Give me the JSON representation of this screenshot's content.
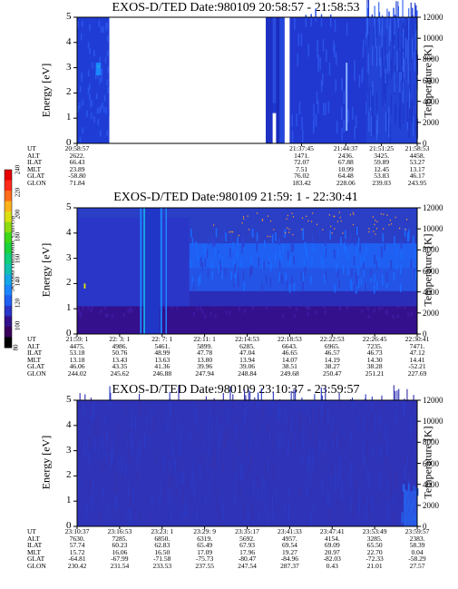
{
  "colorbar": {
    "label": "Second Harmonic Current",
    "ticks": [
      "80",
      "100",
      "120",
      "140",
      "160",
      "180",
      "200",
      "220",
      "240"
    ],
    "colors": [
      "#000000",
      "#3a005a",
      "#34108c",
      "#2a36c8",
      "#1f5ff2",
      "#1b86ff",
      "#16a6e6",
      "#12c0b0",
      "#11cf7a",
      "#1bd23c",
      "#3ed81a",
      "#8ddc11",
      "#dbe012",
      "#ffb31a",
      "#ff6d1c",
      "#ff2a1a",
      "#e60000"
    ]
  },
  "chart_data": [
    {
      "type": "heatmap",
      "title": "EXOS-D/TED   Date:980109  20:58:57 - 21:58:53",
      "ylabel": "Energy [eV]",
      "y2label": "Temperature [K]",
      "yticks": [
        "0",
        "1",
        "2",
        "3",
        "4",
        "5"
      ],
      "y2ticks": [
        "0",
        "2000",
        "4000",
        "6000",
        "8000",
        "10000",
        "12000"
      ],
      "ylim": [
        0,
        5
      ],
      "y2lim": [
        0,
        12000
      ],
      "orbit_rows": [
        "UT",
        "ALT",
        "ILAT",
        "MLT",
        "GLAT",
        "GLON"
      ],
      "orbit_columns": [
        [
          "20:58:57",
          "2622.",
          "66.43",
          "23.89",
          "-58.80",
          "71.84"
        ],
        [
          "21:37:45",
          "1471.",
          "72.07",
          "7.51",
          "76.02",
          "183.42"
        ],
        [
          "21:44:37",
          "2436.",
          "67.88",
          "10.99",
          "64.48",
          "228.06"
        ],
        [
          "21:51:25",
          "3425.",
          "59.89",
          "12.45",
          "53.83",
          "239.03"
        ],
        [
          "21:58:53",
          "4458.",
          "53.27",
          "13.17",
          "46.17",
          "243.95"
        ]
      ]
    },
    {
      "type": "heatmap",
      "title": "EXOS-D/TED   Date:980109  21:59: 1 - 22:30:41",
      "ylabel": "Energy [eV]",
      "y2label": "Temperature [K]",
      "yticks": [
        "0",
        "1",
        "2",
        "3",
        "4",
        "5"
      ],
      "y2ticks": [
        "0",
        "2000",
        "4000",
        "6000",
        "8000",
        "10000",
        "12000"
      ],
      "ylim": [
        0,
        5
      ],
      "y2lim": [
        0,
        12000
      ],
      "orbit_rows": [
        "UT",
        "ALT",
        "ILAT",
        "MLT",
        "GLAT",
        "GLON"
      ],
      "orbit_columns": [
        [
          "21:59: 1",
          "4475.",
          "53.18",
          "13.18",
          "46.06",
          "244.02"
        ],
        [
          "22: 3: 1",
          "4986.",
          "50.76",
          "13.43",
          "43.35",
          "245.62"
        ],
        [
          "22: 7: 1",
          "5461.",
          "48.99",
          "13.63",
          "41.36",
          "246.88"
        ],
        [
          "22:11: 1",
          "5899.",
          "47.78",
          "13.80",
          "39.96",
          "247.94"
        ],
        [
          "22:14:53",
          "6285.",
          "47.04",
          "13.94",
          "39.06",
          "248.84"
        ],
        [
          "22:18:53",
          "6643.",
          "46.65",
          "14.07",
          "38.51",
          "249.68"
        ],
        [
          "22:22:53",
          "6965.",
          "46.57",
          "14.19",
          "38.27",
          "250.47"
        ],
        [
          "22:26:45",
          "7235.",
          "46.73",
          "14.30",
          "38.28",
          "251.21"
        ],
        [
          "22:30:41",
          "7471.",
          "47.12",
          "14.41",
          "-52.21",
          "227.69"
        ]
      ]
    },
    {
      "type": "heatmap",
      "title": "EXOS-D/TED   Date:980109  23:10:37 - 23:59:57",
      "ylabel": "Energy [eV]",
      "y2label": "Temperature [K]",
      "yticks": [
        "0",
        "1",
        "2",
        "3",
        "4",
        "5"
      ],
      "y2ticks": [
        "0",
        "2000",
        "4000",
        "6000",
        "8000",
        "10000",
        "12000"
      ],
      "ylim": [
        0,
        5
      ],
      "y2lim": [
        0,
        12000
      ],
      "orbit_rows": [
        "UT",
        "ALT",
        "ILAT",
        "MLT",
        "GLAT",
        "GLON"
      ],
      "orbit_columns": [
        [
          "23:10:37",
          "7630.",
          "57.74",
          "15.72",
          "-64.81",
          "230.42"
        ],
        [
          "23:16:53",
          "7285.",
          "60.23",
          "16.06",
          "-67.99",
          "231.54"
        ],
        [
          "23:23: 1",
          "6850.",
          "62.83",
          "16.50",
          "-71.58",
          "233.53"
        ],
        [
          "23:29: 9",
          "6319.",
          "65.49",
          "17.09",
          "-75.73",
          "237.55"
        ],
        [
          "23:35:17",
          "5692.",
          "67.93",
          "17.96",
          "-80.47",
          "247.54"
        ],
        [
          "23:41:33",
          "4957.",
          "69.54",
          "19.27",
          "-84.96",
          "287.37"
        ],
        [
          "23:47:41",
          "4154.",
          "69.09",
          "20.97",
          "-82.03",
          "0.43"
        ],
        [
          "23:53:49",
          "3285.",
          "65.50",
          "22.70",
          "-72.33",
          "21.01"
        ],
        [
          "23:59:57",
          "2383.",
          "58.39",
          "0.04",
          "-58.29",
          "27.57"
        ]
      ]
    }
  ]
}
